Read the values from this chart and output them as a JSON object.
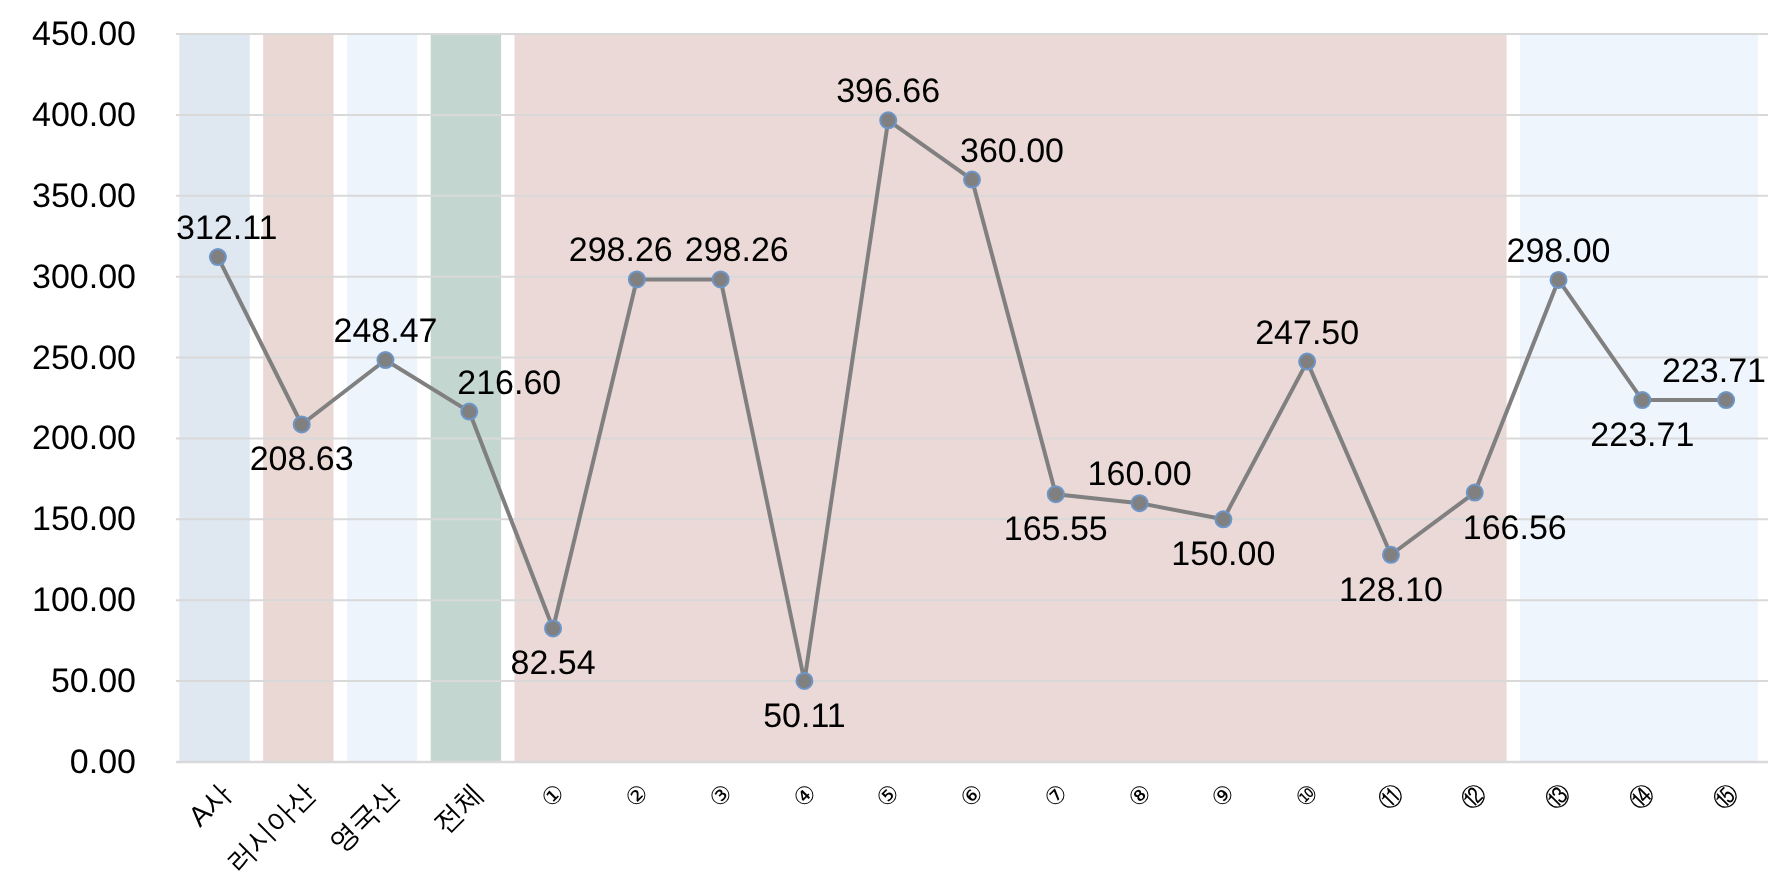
{
  "chart_data": {
    "type": "line",
    "categories": [
      "A사",
      "러시아산",
      "영국산",
      "전체",
      "①",
      "②",
      "③",
      "④",
      "⑤",
      "⑥",
      "⑦",
      "⑧",
      "⑨",
      "⑩",
      "⑪",
      "⑫",
      "⑬",
      "⑭",
      "⑮"
    ],
    "values": [
      312.11,
      208.63,
      248.47,
      216.6,
      82.54,
      298.26,
      298.26,
      50.11,
      396.66,
      360.0,
      165.55,
      160.0,
      150.0,
      247.5,
      128.1,
      166.56,
      298.0,
      223.71,
      223.71
    ],
    "value_labels": [
      "312.11",
      "208.63",
      "248.47",
      "216.60",
      "82.54",
      "298.26",
      "298.26",
      "50.11",
      "396.66",
      "360.00",
      "165.55",
      "160.00",
      "150.00",
      "247.50",
      "128.10",
      "166.56",
      "298.00",
      "223.71",
      "223.71"
    ],
    "color": "#808080",
    "marker": "circle",
    "grid": "y",
    "ylim": [
      0,
      450
    ],
    "yticks": [
      {
        "value": 0,
        "label": "0.00"
      },
      {
        "value": 50,
        "label": "50.00"
      },
      {
        "value": 100,
        "label": "100.00"
      },
      {
        "value": 150,
        "label": "150.00"
      },
      {
        "value": 200,
        "label": "200.00"
      },
      {
        "value": 250,
        "label": "250.00"
      },
      {
        "value": 300,
        "label": "300.00"
      },
      {
        "value": 350,
        "label": "350.00"
      },
      {
        "value": 400,
        "label": "400.00"
      },
      {
        "value": 450,
        "label": "450.00"
      }
    ],
    "bands": [
      {
        "axis": "x",
        "from": "A사",
        "to": "A사",
        "color": "#dfe7f1"
      },
      {
        "axis": "x",
        "from": "러시아산",
        "to": "러시아산",
        "color": "#ead8d4"
      },
      {
        "axis": "x",
        "from": "영국산",
        "to": "영국산",
        "color": "#eef4fc"
      },
      {
        "axis": "x",
        "from": "전체",
        "to": "전체",
        "color": "#c3d7d0"
      },
      {
        "axis": "x",
        "from": "①",
        "to": "⑫",
        "color": "#ead9d6"
      },
      {
        "axis": "x",
        "from": "⑬",
        "to": "⑮",
        "color": "#eef5fd"
      }
    ]
  }
}
